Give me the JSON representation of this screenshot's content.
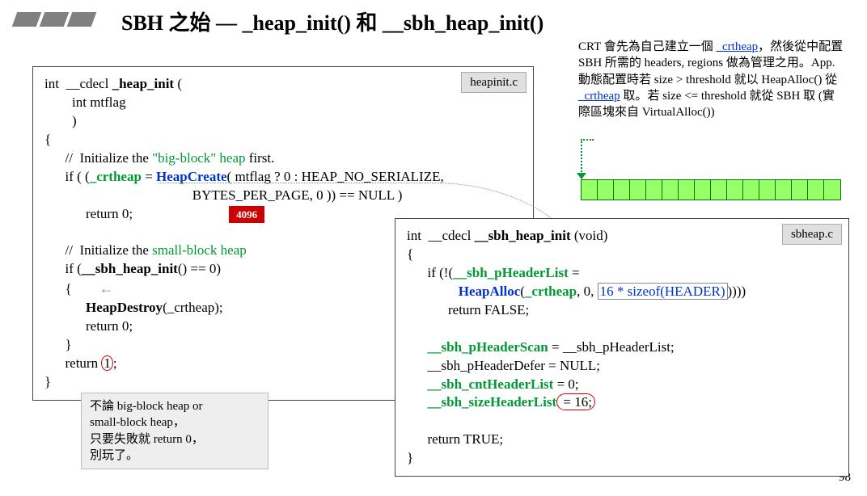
{
  "title": "SBH 之始 — _heap_init() 和 __sbh_heap_init()",
  "explanation": {
    "l1": "CRT 會先為自己建立一個",
    "crtheap": "_crtheap",
    "l2": "，然後從中配置 SBH 所需的 headers, regions 做為管理之用。App. 動態配置時若 size > threshold 就以 HeapAlloc() 從",
    "l3": "取。若 size <= threshold 就從 SBH 取 (實際區塊來自 VirtualAlloc())"
  },
  "box1": {
    "file": "heapinit.c",
    "sig1": "int  __cdecl ",
    "sig_fn": "_heap_init",
    "sig2": " (",
    "arg": "int mtflag",
    "close": ")",
    "open_brace": "{",
    "c1a": "//  Initialize the ",
    "c1b": "\"big-block\" heap",
    "c1c": " first.",
    "if1a": "if ( (",
    "crtheap": "_crtheap",
    "eq": " = ",
    "hc": "HeapCreate",
    "if1b": "( mtflag ? 0 : HEAP_NO_SERIALIZE,",
    "if1c": "BYTES_PER_PAGE, 0 )) == NULL )",
    "badge": "4096",
    "ret0": "return 0;",
    "c2a": "//  Initialize the ",
    "c2b": "small-block heap",
    "if2a": "if (",
    "sbh": "__sbh_heap_init",
    "if2b": "() == 0)",
    "inner_open": "{",
    "hd": "HeapDestroy",
    "hd2": "(_crtheap);",
    "inner_close": "}",
    "ret1a": "return ",
    "ret1b": "1",
    "ret1c": ";",
    "end_brace": "}"
  },
  "box2": {
    "file": "sbheap.c",
    "sig1": "int  __cdecl ",
    "sig_fn": "__sbh_heap_init",
    "sig2": " (void)",
    "open_brace": "{",
    "if_a": "if (!(",
    "phl": "__sbh_pHeaderList",
    "eq": " =",
    "ha": "HeapAlloc",
    "lp": "(",
    "crtheap": "_crtheap",
    "mid": ", 0, ",
    "sz": "16 * sizeof(HEADER)",
    "end": "))))",
    "retF": "return FALSE;",
    "s1": "__sbh_pHeaderScan",
    "s1b": " = __sbh_pHeaderList;",
    "s2": "__sbh_pHeaderDefer = NULL;",
    "s3a": "__sbh_cntHeaderList",
    "s3b": " = 0;",
    "s4a": "__sbh_sizeHeaderList",
    "s4b": " = 16;",
    "retT": "return TRUE;",
    "end_brace": "}"
  },
  "note1": {
    "l1": "不論 big-block heap or",
    "l2": "small-block heap，",
    "l3": "只要失敗就 return 0，",
    "l4": "別玩了。"
  },
  "memory_cells": 16,
  "page": "98",
  "colors": {
    "green": "#009933",
    "blue": "#0033cc",
    "red": "#cc0000",
    "mem_fill": "#99ff66",
    "mem_border": "#007700",
    "grey": "#808080"
  }
}
